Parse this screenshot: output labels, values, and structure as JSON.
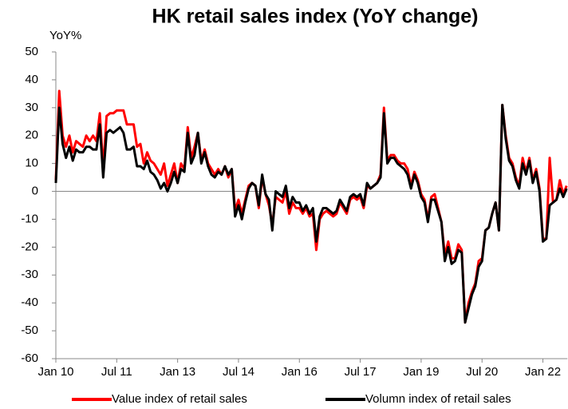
{
  "chart_data": {
    "type": "line",
    "title": "HK retail sales index (YoY change)",
    "y_label": "YoY%",
    "categories": [
      "Jan 10",
      null,
      null,
      null,
      null,
      null,
      null,
      null,
      null,
      null,
      null,
      null,
      null,
      null,
      null,
      null,
      null,
      null,
      "Jul 11",
      null,
      null,
      null,
      null,
      null,
      null,
      null,
      null,
      null,
      null,
      null,
      null,
      null,
      null,
      null,
      null,
      null,
      "Jan 13",
      null,
      null,
      null,
      null,
      null,
      null,
      null,
      null,
      null,
      null,
      null,
      null,
      null,
      null,
      null,
      null,
      null,
      "Jul 14",
      null,
      null,
      null,
      null,
      null,
      null,
      null,
      null,
      null,
      null,
      null,
      null,
      null,
      null,
      null,
      null,
      null,
      "Jan 16",
      null,
      null,
      null,
      null,
      null,
      null,
      null,
      null,
      null,
      null,
      null,
      null,
      null,
      null,
      null,
      null,
      null,
      "Jul 17",
      null,
      null,
      null,
      null,
      null,
      null,
      null,
      null,
      null,
      null,
      null,
      null,
      null,
      null,
      null,
      null,
      null,
      "Jan 19",
      null,
      null,
      null,
      null,
      null,
      null,
      null,
      null,
      null,
      null,
      null,
      null,
      null,
      null,
      null,
      null,
      null,
      "Jul 20",
      null,
      null,
      null,
      null,
      null,
      null,
      null,
      null,
      null,
      null,
      null,
      null,
      null,
      null,
      null,
      null,
      null,
      "Jan 22",
      null,
      null,
      null,
      null,
      null,
      null,
      null
    ],
    "series": [
      {
        "name": "Value index of retail sales",
        "color": "#ff0000",
        "values": [
          4,
          36,
          20,
          16,
          20,
          14,
          18,
          17,
          16,
          20,
          18,
          20,
          18,
          28,
          8,
          27,
          28,
          28,
          29,
          29,
          29,
          24,
          24,
          24,
          16,
          17,
          10,
          14,
          11,
          10,
          8,
          6,
          10,
          2,
          6,
          10,
          3,
          10,
          8,
          23,
          12,
          16,
          21,
          11,
          15,
          10,
          8,
          6,
          8,
          6,
          9,
          5,
          8,
          -7,
          -3,
          -8,
          -3,
          2,
          3,
          2,
          -6,
          5,
          -1,
          -5,
          -12,
          -2,
          -3,
          -4,
          0,
          -8,
          -4,
          -6,
          -6,
          -8,
          -6,
          -9,
          -8,
          -21,
          -10,
          -8,
          -7,
          -8,
          -9,
          -8,
          -4,
          -6,
          -8,
          -3,
          -2,
          -3,
          -2,
          -6,
          2,
          1,
          2,
          3,
          6,
          30,
          11,
          13,
          13,
          11,
          10,
          10,
          8,
          2,
          7,
          4,
          -1,
          -3,
          -10,
          -2,
          -1,
          -6,
          -11,
          -23,
          -18,
          -24,
          -24,
          -19,
          -21,
          -47,
          -40,
          -36,
          -33,
          -25,
          -24,
          -14,
          -13,
          -8,
          -4,
          -14,
          31,
          20,
          12,
          10,
          5,
          2,
          12,
          7,
          12,
          4,
          8,
          1,
          -17,
          -17,
          12,
          -4,
          -3,
          4,
          -1,
          2
        ]
      },
      {
        "name": "Volumn index of retail sales",
        "color": "#000000",
        "values": [
          3,
          30,
          17,
          12,
          16,
          11,
          15,
          14,
          14,
          16,
          16,
          15,
          15,
          24,
          5,
          21,
          22,
          21,
          22,
          23,
          21,
          15,
          15,
          16,
          9,
          9,
          8,
          11,
          7,
          6,
          4,
          1,
          3,
          0,
          3,
          7,
          3,
          8,
          7,
          21,
          10,
          13,
          21,
          10,
          14,
          9,
          6,
          5,
          7,
          6,
          9,
          6,
          8,
          -9,
          -5,
          -10,
          -4,
          1,
          3,
          2,
          -5,
          6,
          -1,
          -3,
          -14,
          0,
          -1,
          -2,
          2,
          -6,
          -2,
          -4,
          -4,
          -7,
          -5,
          -8,
          -6,
          -18,
          -9,
          -6,
          -6,
          -7,
          -8,
          -7,
          -3,
          -5,
          -7,
          -2,
          -1,
          -2,
          -1,
          -5,
          3,
          1,
          2,
          3,
          5,
          28,
          10,
          12,
          12,
          10,
          9,
          8,
          6,
          1,
          6,
          3,
          -2,
          -4,
          -11,
          -3,
          -3,
          -7,
          -11,
          -25,
          -20,
          -26,
          -25,
          -21,
          -22,
          -47,
          -42,
          -37,
          -34,
          -27,
          -25,
          -14,
          -13,
          -8,
          -4,
          -14,
          31,
          19,
          11,
          9,
          4,
          1,
          10,
          6,
          11,
          3,
          7,
          0,
          -18,
          -17,
          -5,
          -4,
          -3,
          1,
          -2,
          1
        ]
      }
    ],
    "ylim": [
      -60,
      50
    ],
    "yticks": [
      -60,
      -50,
      -40,
      -30,
      -20,
      -10,
      0,
      10,
      20,
      30,
      40,
      50
    ]
  }
}
